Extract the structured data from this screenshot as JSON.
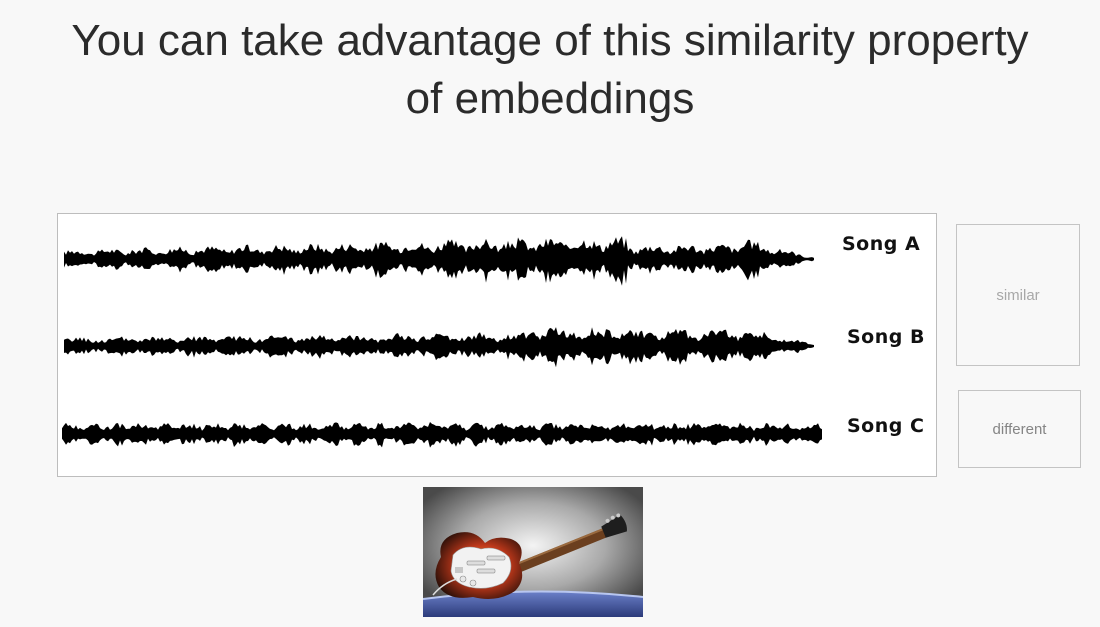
{
  "slide": {
    "title_line1": "You can take advantage of this similarity property",
    "title_line2": "of embeddings"
  },
  "songs": [
    {
      "label": "Song  A"
    },
    {
      "label": "Song  B"
    },
    {
      "label": "Song  C"
    }
  ],
  "categories": {
    "similar_label": "similar",
    "different_label": "different"
  },
  "image": {
    "icon": "electric-guitar-icon"
  },
  "colors": {
    "background": "#f8f8f8",
    "waveform": "#000000",
    "guitar_body": "#c0391b"
  }
}
